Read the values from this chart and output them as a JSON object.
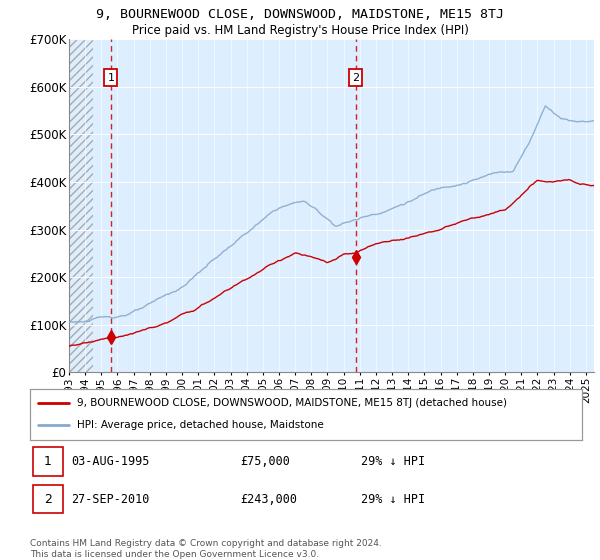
{
  "title": "9, BOURNEWOOD CLOSE, DOWNSWOOD, MAIDSTONE, ME15 8TJ",
  "subtitle": "Price paid vs. HM Land Registry's House Price Index (HPI)",
  "hpi_color": "#88aacc",
  "hpi_fill_color": "#ddeeff",
  "price_color": "#cc0000",
  "marker_color": "#cc0000",
  "hatch_color": "#cccccc",
  "sale1_date": 1995.59,
  "sale1_price": 75000,
  "sale1_label": "1",
  "sale2_date": 2010.74,
  "sale2_price": 243000,
  "sale2_label": "2",
  "legend_label1": "9, BOURNEWOOD CLOSE, DOWNSWOOD, MAIDSTONE, ME15 8TJ (detached house)",
  "legend_label2": "HPI: Average price, detached house, Maidstone",
  "table_row1": [
    "1",
    "03-AUG-1995",
    "£75,000",
    "29% ↓ HPI"
  ],
  "table_row2": [
    "2",
    "27-SEP-2010",
    "£243,000",
    "29% ↓ HPI"
  ],
  "footer": "Contains HM Land Registry data © Crown copyright and database right 2024.\nThis data is licensed under the Open Government Licence v3.0.",
  "xmin": 1993.0,
  "xmax": 2025.5,
  "ymin": 0,
  "ymax": 700000,
  "yticks": [
    0,
    100000,
    200000,
    300000,
    400000,
    500000,
    600000,
    700000
  ],
  "ytick_labels": [
    "£0",
    "£100K",
    "£200K",
    "£300K",
    "£400K",
    "£500K",
    "£600K",
    "£700K"
  ]
}
